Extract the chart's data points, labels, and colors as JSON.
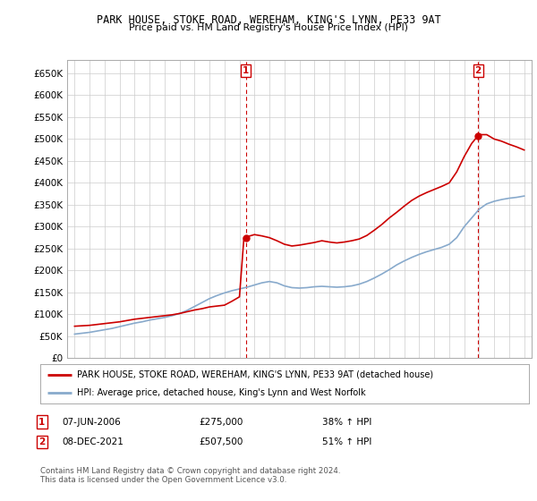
{
  "title": "PARK HOUSE, STOKE ROAD, WEREHAM, KING'S LYNN, PE33 9AT",
  "subtitle": "Price paid vs. HM Land Registry's House Price Index (HPI)",
  "legend_line1": "PARK HOUSE, STOKE ROAD, WEREHAM, KING'S LYNN, PE33 9AT (detached house)",
  "legend_line2": "HPI: Average price, detached house, King's Lynn and West Norfolk",
  "annotation1_label": "1",
  "annotation1_date": "07-JUN-2006",
  "annotation1_price": "£275,000",
  "annotation1_hpi": "38% ↑ HPI",
  "annotation2_label": "2",
  "annotation2_date": "08-DEC-2021",
  "annotation2_price": "£507,500",
  "annotation2_hpi": "51% ↑ HPI",
  "footnote": "Contains HM Land Registry data © Crown copyright and database right 2024.\nThis data is licensed under the Open Government Licence v3.0.",
  "background_color": "#ffffff",
  "plot_background": "#ffffff",
  "grid_color": "#cccccc",
  "red_line_color": "#cc0000",
  "blue_line_color": "#88aacc",
  "annotation_color": "#cc0000",
  "ylim": [
    0,
    680000
  ],
  "yticks": [
    0,
    50000,
    100000,
    150000,
    200000,
    250000,
    300000,
    350000,
    400000,
    450000,
    500000,
    550000,
    600000,
    650000
  ],
  "ytick_labels": [
    "£0",
    "£50K",
    "£100K",
    "£150K",
    "£200K",
    "£250K",
    "£300K",
    "£350K",
    "£400K",
    "£450K",
    "£500K",
    "£550K",
    "£600K",
    "£650K"
  ],
  "red_x": [
    1995,
    1995.5,
    1996,
    1996.5,
    1997,
    1997.5,
    1998,
    1998.5,
    1999,
    1999.5,
    2000,
    2000.5,
    2001,
    2001.5,
    2002,
    2002.5,
    2003,
    2003.5,
    2004,
    2004.5,
    2005,
    2005.5,
    2006,
    2006.3,
    2006.44,
    2006.6,
    2007,
    2007.5,
    2008,
    2008.5,
    2009,
    2009.5,
    2010,
    2010.5,
    2011,
    2011.5,
    2012,
    2012.5,
    2013,
    2013.5,
    2014,
    2014.5,
    2015,
    2015.5,
    2016,
    2016.5,
    2017,
    2017.5,
    2018,
    2018.5,
    2019,
    2019.5,
    2020,
    2020.5,
    2021,
    2021.5,
    2021.92,
    2022,
    2022.5,
    2023,
    2023.5,
    2024,
    2024.5,
    2025
  ],
  "red_y": [
    73000,
    74000,
    75000,
    77000,
    79000,
    81000,
    83000,
    86000,
    89000,
    91000,
    93000,
    95000,
    97000,
    99000,
    102000,
    106000,
    110000,
    113000,
    117000,
    119000,
    121000,
    130000,
    140000,
    275000,
    275000,
    278000,
    282000,
    279000,
    275000,
    268000,
    260000,
    256000,
    258000,
    261000,
    264000,
    268000,
    265000,
    263000,
    265000,
    268000,
    272000,
    280000,
    292000,
    305000,
    320000,
    333000,
    347000,
    360000,
    370000,
    378000,
    385000,
    392000,
    400000,
    425000,
    460000,
    490000,
    507500,
    510000,
    510000,
    500000,
    495000,
    488000,
    482000,
    475000
  ],
  "blue_x": [
    1995,
    1995.5,
    1996,
    1996.5,
    1997,
    1997.5,
    1998,
    1998.5,
    1999,
    1999.5,
    2000,
    2000.5,
    2001,
    2001.5,
    2002,
    2002.5,
    2003,
    2003.5,
    2004,
    2004.5,
    2005,
    2005.5,
    2006,
    2006.5,
    2007,
    2007.5,
    2008,
    2008.5,
    2009,
    2009.5,
    2010,
    2010.5,
    2011,
    2011.5,
    2012,
    2012.5,
    2013,
    2013.5,
    2014,
    2014.5,
    2015,
    2015.5,
    2016,
    2016.5,
    2017,
    2017.5,
    2018,
    2018.5,
    2019,
    2019.5,
    2020,
    2020.5,
    2021,
    2021.5,
    2022,
    2022.5,
    2023,
    2023.5,
    2024,
    2024.5,
    2025
  ],
  "blue_y": [
    55000,
    57000,
    59000,
    62000,
    65000,
    68000,
    72000,
    76000,
    80000,
    83000,
    87000,
    90000,
    93000,
    97000,
    102000,
    109000,
    118000,
    127000,
    136000,
    143000,
    149000,
    154000,
    158000,
    162000,
    167000,
    172000,
    175000,
    172000,
    165000,
    161000,
    160000,
    161000,
    163000,
    164000,
    163000,
    162000,
    163000,
    165000,
    169000,
    175000,
    183000,
    192000,
    202000,
    213000,
    222000,
    230000,
    237000,
    243000,
    248000,
    253000,
    260000,
    275000,
    300000,
    320000,
    340000,
    352000,
    358000,
    362000,
    365000,
    367000,
    370000
  ],
  "sale1_x": 2006.44,
  "sale1_y": 275000,
  "sale2_x": 2021.92,
  "sale2_y": 507500,
  "vline1_x": 2006.44,
  "vline2_x": 2021.92,
  "xlim": [
    1994.5,
    2025.5
  ],
  "xticks": [
    1995,
    1996,
    1997,
    1998,
    1999,
    2000,
    2001,
    2002,
    2003,
    2004,
    2005,
    2006,
    2007,
    2008,
    2009,
    2010,
    2011,
    2012,
    2013,
    2014,
    2015,
    2016,
    2017,
    2018,
    2019,
    2020,
    2021,
    2022,
    2023,
    2024,
    2025
  ]
}
